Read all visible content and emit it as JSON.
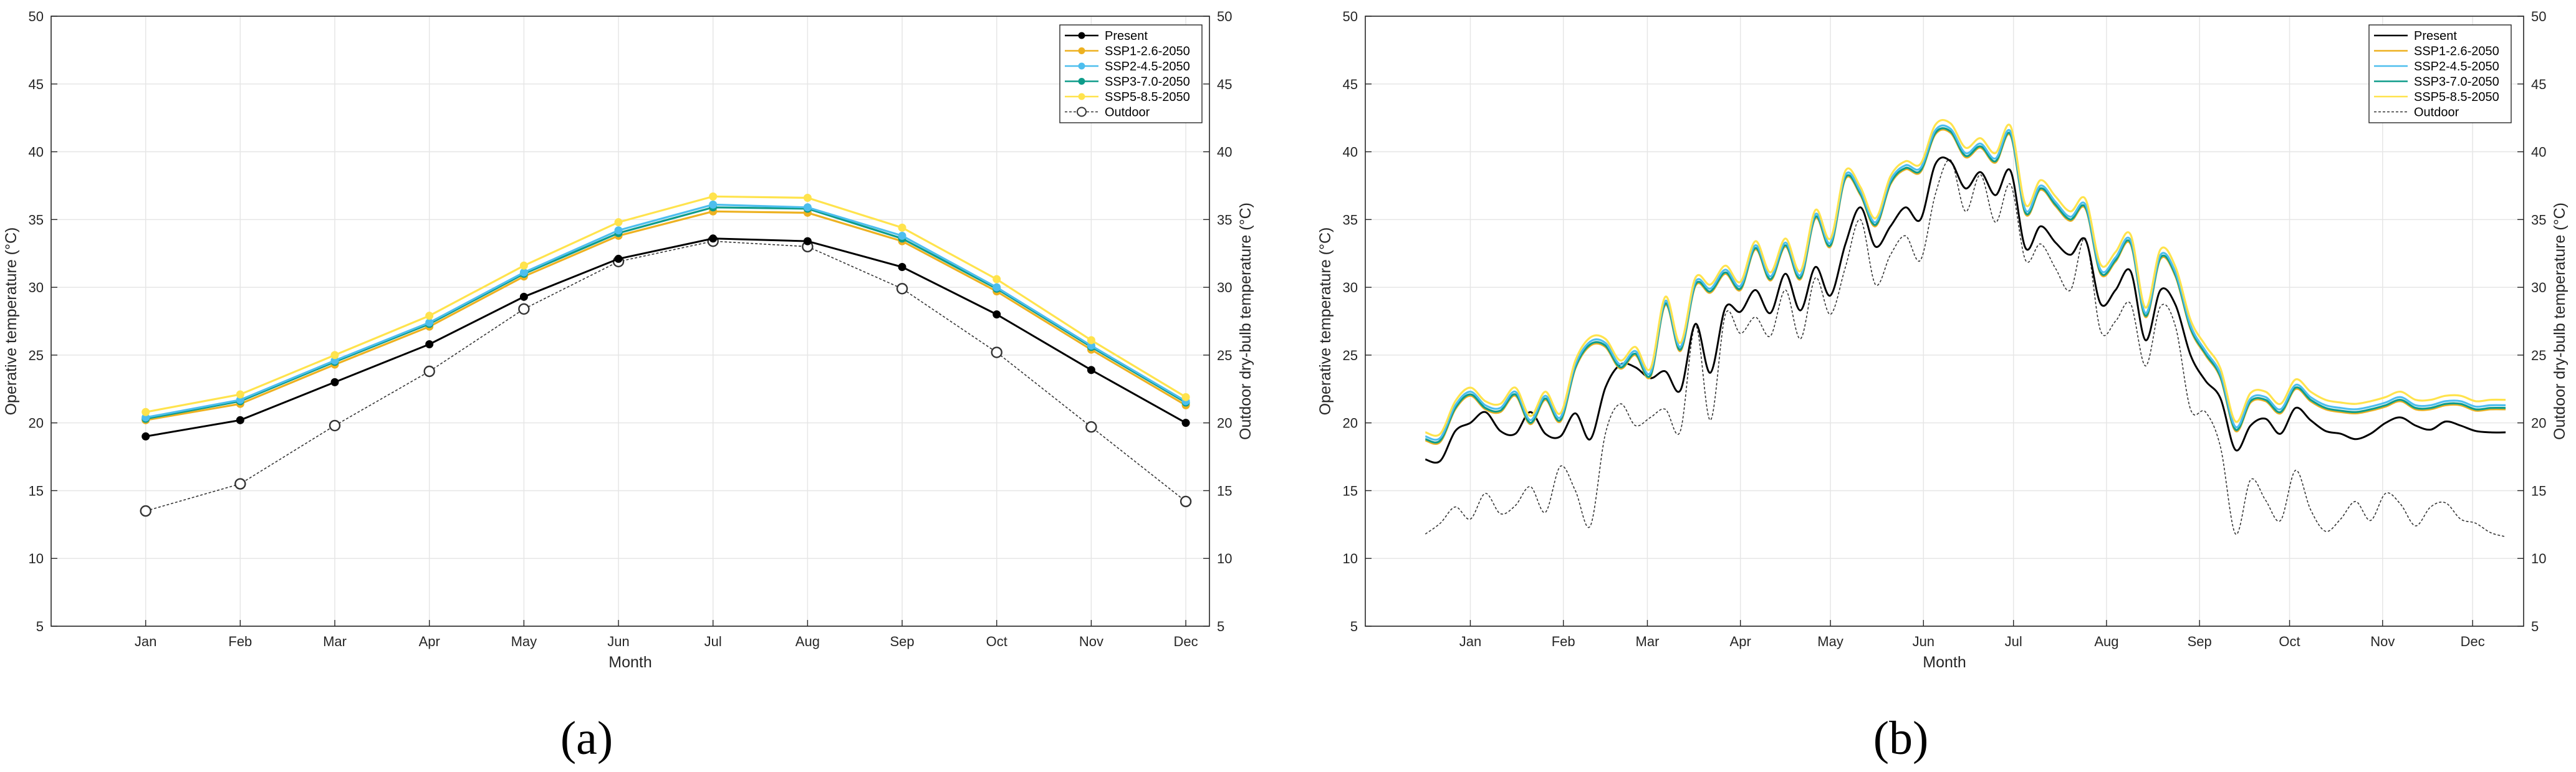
{
  "colors": {
    "present": "#000000",
    "ssp126": "#EDB120",
    "ssp245": "#4DBEEE",
    "ssp370": "#0E9C8A",
    "ssp585": "#FFE34D",
    "outdoor": "#333333"
  },
  "chart_data": [
    {
      "type": "line",
      "panel_label": "(a)",
      "xlabel": "Month",
      "ylabel_left": "Operative temperature (°C)",
      "ylabel_right": "Outdoor dry-bulb temperature (°C)",
      "ylim": [
        5,
        50
      ],
      "yticks": [
        5,
        10,
        15,
        20,
        25,
        30,
        35,
        40,
        45,
        50
      ],
      "grid": true,
      "legend_placement": "top-right",
      "categories": [
        "Jan",
        "Feb",
        "Mar",
        "Apr",
        "May",
        "Jun",
        "Jul",
        "Aug",
        "Sep",
        "Oct",
        "Nov",
        "Dec"
      ],
      "series": [
        {
          "name": "Present",
          "key": "present",
          "marker": "filled",
          "values": [
            19.0,
            20.2,
            23.0,
            25.8,
            29.3,
            32.1,
            33.6,
            33.4,
            31.5,
            28.0,
            23.9,
            20.0
          ]
        },
        {
          "name": "SSP1-2.6-2050",
          "key": "ssp126",
          "marker": "filled",
          "values": [
            20.2,
            21.4,
            24.3,
            27.1,
            30.8,
            33.8,
            35.6,
            35.5,
            33.4,
            29.7,
            25.4,
            21.3
          ]
        },
        {
          "name": "SSP2-4.5-2050",
          "key": "ssp245",
          "marker": "filled",
          "values": [
            20.4,
            21.7,
            24.6,
            27.4,
            31.1,
            34.2,
            36.1,
            35.9,
            33.8,
            30.0,
            25.7,
            21.6
          ]
        },
        {
          "name": "SSP3-7.0-2050",
          "key": "ssp370",
          "marker": "filled",
          "values": [
            20.3,
            21.6,
            24.5,
            27.3,
            31.0,
            34.0,
            35.9,
            35.8,
            33.6,
            29.9,
            25.6,
            21.5
          ]
        },
        {
          "name": "SSP5-8.5-2050",
          "key": "ssp585",
          "marker": "filled",
          "values": [
            20.8,
            22.1,
            25.0,
            27.9,
            31.6,
            34.8,
            36.7,
            36.6,
            34.4,
            30.6,
            26.1,
            21.9
          ]
        },
        {
          "name": "Outdoor",
          "key": "outdoor",
          "marker": "open",
          "dashed": true,
          "values": [
            13.5,
            15.5,
            19.8,
            23.8,
            28.4,
            31.9,
            33.4,
            33.0,
            29.9,
            25.2,
            19.7,
            14.2
          ]
        }
      ]
    },
    {
      "type": "line",
      "panel_label": "(b)",
      "xlabel": "Month",
      "ylabel_left": "Operative temperature (°C)",
      "ylabel_right": "Outdoor dry-bulb temperature (°C)",
      "ylim": [
        5,
        50
      ],
      "yticks": [
        5,
        10,
        15,
        20,
        25,
        30,
        35,
        40,
        45,
        50
      ],
      "grid": true,
      "legend_placement": "top-right",
      "x_day_ticks": [
        15,
        46,
        74,
        105,
        135,
        166,
        196,
        227,
        258,
        288,
        319,
        349
      ],
      "tick_labels": [
        "Jan",
        "Feb",
        "Mar",
        "Apr",
        "May",
        "Jun",
        "Jul",
        "Aug",
        "Sep",
        "Oct",
        "Nov",
        "Dec"
      ],
      "xlim": [
        -20,
        366
      ],
      "x": [
        0,
        5,
        10,
        15,
        20,
        25,
        30,
        35,
        40,
        45,
        50,
        55,
        60,
        65,
        70,
        75,
        80,
        85,
        90,
        95,
        100,
        105,
        110,
        115,
        120,
        125,
        130,
        135,
        140,
        145,
        150,
        155,
        160,
        165,
        170,
        175,
        180,
        185,
        190,
        195,
        200,
        205,
        210,
        215,
        220,
        225,
        230,
        235,
        240,
        245,
        250,
        255,
        260,
        265,
        270,
        275,
        280,
        285,
        290,
        295,
        300,
        305,
        310,
        315,
        320,
        325,
        330,
        335,
        340,
        345,
        350,
        355,
        360
      ],
      "series": [
        {
          "name": "Present",
          "key": "present",
          "values": [
            17.3,
            17.2,
            19.4,
            20.0,
            20.8,
            19.4,
            19.2,
            20.8,
            19.2,
            19.0,
            20.7,
            18.8,
            22.6,
            24.3,
            24.1,
            23.3,
            23.8,
            22.4,
            27.3,
            23.7,
            28.5,
            28.2,
            29.8,
            28.1,
            31.0,
            28.3,
            31.5,
            29.4,
            33.2,
            35.9,
            33.0,
            34.5,
            35.9,
            35.0,
            39.1,
            39.3,
            37.3,
            38.5,
            36.8,
            38.6,
            32.9,
            34.5,
            33.3,
            32.4,
            33.5,
            28.8,
            29.8,
            31.2,
            26.1,
            29.8,
            28.7,
            25.0,
            23.1,
            21.8,
            18.0,
            19.8,
            20.3,
            19.2,
            21.1,
            20.2,
            19.4,
            19.2,
            18.8,
            19.2,
            20.0,
            20.4,
            19.8,
            19.5,
            20.1,
            19.8,
            19.4,
            19.3,
            19.3
          ]
        },
        {
          "name": "SSP1-2.6-2050",
          "key": "ssp126",
          "values": [
            18.7,
            18.6,
            21.0,
            22.0,
            21.0,
            20.8,
            22.0,
            19.9,
            21.7,
            20.1,
            24.0,
            25.7,
            25.6,
            24.0,
            25.0,
            23.4,
            28.7,
            25.3,
            30.1,
            29.6,
            31.0,
            29.8,
            32.8,
            30.5,
            33.0,
            30.6,
            35.1,
            33.0,
            38.0,
            36.8,
            34.5,
            37.6,
            38.7,
            38.5,
            41.3,
            41.4,
            39.6,
            40.3,
            39.2,
            41.2,
            35.4,
            37.2,
            36.0,
            34.9,
            35.8,
            31.0,
            31.9,
            33.2,
            27.8,
            32.1,
            30.8,
            26.9,
            25.0,
            23.3,
            19.4,
            21.5,
            21.6,
            20.7,
            22.5,
            21.6,
            21.0,
            20.8,
            20.7,
            20.9,
            21.2,
            21.6,
            21.0,
            21.0,
            21.3,
            21.3,
            20.9,
            21.0,
            21.0
          ]
        },
        {
          "name": "SSP2-4.5-2050",
          "key": "ssp245",
          "values": [
            19.0,
            18.9,
            21.3,
            22.3,
            21.3,
            21.1,
            22.3,
            20.2,
            22.0,
            20.4,
            24.3,
            26.0,
            25.9,
            24.3,
            25.3,
            23.7,
            29.0,
            25.6,
            30.4,
            29.9,
            31.3,
            30.1,
            33.1,
            30.8,
            33.3,
            30.9,
            35.4,
            33.3,
            38.3,
            37.1,
            34.8,
            37.9,
            39.0,
            38.8,
            41.6,
            41.7,
            39.9,
            40.6,
            39.5,
            41.5,
            35.7,
            37.5,
            36.3,
            35.2,
            36.1,
            31.3,
            32.2,
            33.5,
            28.1,
            32.4,
            31.1,
            27.2,
            25.3,
            23.6,
            19.7,
            21.8,
            21.9,
            21.0,
            22.8,
            21.9,
            21.3,
            21.1,
            21.0,
            21.2,
            21.5,
            21.9,
            21.3,
            21.3,
            21.6,
            21.6,
            21.2,
            21.3,
            21.3
          ]
        },
        {
          "name": "SSP3-7.0-2050",
          "key": "ssp370",
          "values": [
            18.8,
            18.7,
            21.1,
            22.1,
            21.1,
            20.9,
            22.1,
            20.0,
            21.8,
            20.2,
            24.1,
            25.8,
            25.7,
            24.1,
            25.1,
            23.5,
            28.8,
            25.4,
            30.2,
            29.7,
            31.1,
            29.9,
            32.9,
            30.6,
            33.1,
            30.7,
            35.2,
            33.1,
            38.1,
            36.9,
            34.6,
            37.7,
            38.8,
            38.6,
            41.4,
            41.5,
            39.7,
            40.4,
            39.3,
            41.3,
            35.5,
            37.3,
            36.1,
            35.0,
            35.9,
            31.1,
            32.0,
            33.3,
            27.9,
            32.2,
            30.9,
            27.0,
            25.1,
            23.4,
            19.5,
            21.6,
            21.7,
            20.8,
            22.6,
            21.7,
            21.1,
            20.9,
            20.8,
            21.0,
            21.3,
            21.7,
            21.1,
            21.1,
            21.4,
            21.4,
            21.0,
            21.1,
            21.1
          ]
        },
        {
          "name": "SSP5-8.5-2050",
          "key": "ssp585",
          "values": [
            19.3,
            19.2,
            21.6,
            22.6,
            21.6,
            21.4,
            22.6,
            20.5,
            22.3,
            20.7,
            24.6,
            26.3,
            26.2,
            24.6,
            25.6,
            24.0,
            29.3,
            25.9,
            30.7,
            30.2,
            31.6,
            30.4,
            33.4,
            31.1,
            33.6,
            31.2,
            35.7,
            33.6,
            38.6,
            37.4,
            35.1,
            38.2,
            39.3,
            39.1,
            42.0,
            42.1,
            40.3,
            41.0,
            39.9,
            41.9,
            36.1,
            37.9,
            36.7,
            35.6,
            36.5,
            31.7,
            32.6,
            33.9,
            28.5,
            32.8,
            31.5,
            27.6,
            25.7,
            24.0,
            20.1,
            22.2,
            22.3,
            21.4,
            23.2,
            22.3,
            21.7,
            21.5,
            21.4,
            21.6,
            21.9,
            22.3,
            21.7,
            21.7,
            22.0,
            22.0,
            21.6,
            21.7,
            21.7
          ]
        },
        {
          "name": "Outdoor",
          "key": "outdoor",
          "dashed": true,
          "values": [
            11.8,
            12.6,
            13.8,
            12.9,
            14.8,
            13.3,
            13.9,
            15.3,
            13.4,
            16.8,
            15.0,
            12.4,
            19.2,
            21.4,
            19.8,
            20.4,
            21.0,
            19.4,
            27.2,
            20.2,
            28.0,
            26.6,
            27.8,
            26.4,
            29.8,
            26.2,
            30.7,
            28.0,
            31.5,
            35.0,
            30.2,
            32.4,
            33.8,
            32.0,
            36.9,
            39.4,
            35.6,
            38.3,
            34.8,
            37.6,
            32.0,
            33.2,
            31.4,
            29.8,
            33.6,
            26.8,
            27.5,
            28.8,
            24.2,
            28.6,
            27.1,
            21.0,
            20.8,
            18.2,
            11.8,
            15.8,
            14.3,
            12.8,
            16.5,
            13.6,
            12.0,
            12.9,
            14.2,
            12.8,
            14.8,
            14.0,
            12.4,
            13.8,
            14.1,
            12.9,
            12.6,
            11.9,
            11.6
          ]
        }
      ]
    }
  ]
}
